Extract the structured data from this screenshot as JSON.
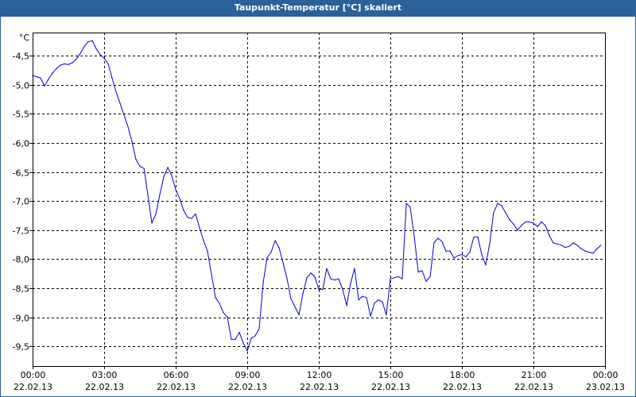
{
  "chart_data": {
    "type": "line",
    "title": "Taupunkt-Temperatur [°C] skaliert",
    "y_unit": "°C",
    "ylim": [
      -9.84,
      -4.1
    ],
    "y_ticks": [
      -4.5,
      -5.0,
      -5.5,
      -6.0,
      -6.5,
      -7.0,
      -7.5,
      -8.0,
      -8.5,
      -9.0,
      -9.5
    ],
    "y_tick_labels": [
      "-4,5",
      "-5,0",
      "-5,5",
      "-6,0",
      "-6,5",
      "-7,0",
      "-7,5",
      "-8,0",
      "-8,5",
      "-9,0",
      "-9,5"
    ],
    "xlim": [
      0,
      24
    ],
    "x_ticks": [
      0,
      3,
      6,
      9,
      12,
      15,
      18,
      21,
      24
    ],
    "x_tick_labels": [
      [
        "00:00",
        "22.02.13"
      ],
      [
        "03:00",
        "22.02.13"
      ],
      [
        "06:00",
        "22.02.13"
      ],
      [
        "09:00",
        "22.02.13"
      ],
      [
        "12:00",
        "22.02.13"
      ],
      [
        "15:00",
        "22.02.13"
      ],
      [
        "18:00",
        "22.02.13"
      ],
      [
        "21:00",
        "22.02.13"
      ],
      [
        "00:00",
        "23.02.13"
      ]
    ],
    "grid": true,
    "series": [
      {
        "color": "#0000cc",
        "x": [
          0,
          0.17,
          0.33,
          0.5,
          0.67,
          0.83,
          1.0,
          1.17,
          1.33,
          1.5,
          1.67,
          1.83,
          2.0,
          2.17,
          2.33,
          2.5,
          2.67,
          2.83,
          3.0,
          3.17,
          3.33,
          3.5,
          3.67,
          3.83,
          4.0,
          4.17,
          4.33,
          4.5,
          4.67,
          4.83,
          5.0,
          5.17,
          5.33,
          5.5,
          5.67,
          5.83,
          6.0,
          6.17,
          6.33,
          6.5,
          6.67,
          6.83,
          7.0,
          7.17,
          7.33,
          7.5,
          7.67,
          7.83,
          8.0,
          8.17,
          8.33,
          8.5,
          8.67,
          8.83,
          9.0,
          9.17,
          9.33,
          9.5,
          9.67,
          9.83,
          10.0,
          10.17,
          10.33,
          10.5,
          10.67,
          10.83,
          11.0,
          11.17,
          11.33,
          11.5,
          11.67,
          11.83,
          12.0,
          12.17,
          12.33,
          12.5,
          12.67,
          12.83,
          13.0,
          13.17,
          13.33,
          13.5,
          13.67,
          13.83,
          14.0,
          14.17,
          14.33,
          14.5,
          14.67,
          14.83,
          15.0,
          15.17,
          15.33,
          15.5,
          15.67,
          15.83,
          16.0,
          16.17,
          16.33,
          16.5,
          16.67,
          16.83,
          17.0,
          17.17,
          17.33,
          17.5,
          17.67,
          17.83,
          18.0,
          18.17,
          18.33,
          18.5,
          18.67,
          18.83,
          19.0,
          19.17,
          19.33,
          19.5,
          19.67,
          19.83,
          20.0,
          20.17,
          20.33,
          20.5,
          20.67,
          20.83,
          21.0,
          21.17,
          21.33,
          21.5,
          21.67,
          21.83,
          22.0,
          22.17,
          22.33,
          22.5,
          22.67,
          22.83,
          23.0,
          23.17,
          23.33,
          23.5,
          23.67,
          23.83
        ],
        "y": [
          -4.84,
          -4.86,
          -4.88,
          -5.02,
          -4.9,
          -4.8,
          -4.72,
          -4.66,
          -4.64,
          -4.65,
          -4.62,
          -4.56,
          -4.46,
          -4.34,
          -4.26,
          -4.24,
          -4.38,
          -4.48,
          -4.54,
          -4.64,
          -4.88,
          -5.12,
          -5.32,
          -5.52,
          -5.72,
          -5.98,
          -6.28,
          -6.4,
          -6.44,
          -6.88,
          -7.38,
          -7.22,
          -6.9,
          -6.58,
          -6.42,
          -6.56,
          -6.8,
          -6.96,
          -7.16,
          -7.28,
          -7.3,
          -7.22,
          -7.46,
          -7.68,
          -7.86,
          -8.26,
          -8.66,
          -8.76,
          -8.92,
          -9.0,
          -9.38,
          -9.38,
          -9.26,
          -9.44,
          -9.58,
          -9.36,
          -9.32,
          -9.2,
          -8.4,
          -7.98,
          -7.88,
          -7.68,
          -7.8,
          -8.06,
          -8.34,
          -8.68,
          -8.82,
          -8.96,
          -8.6,
          -8.32,
          -8.24,
          -8.3,
          -8.52,
          -8.52,
          -8.16,
          -8.34,
          -8.36,
          -8.34,
          -8.52,
          -8.8,
          -8.42,
          -8.16,
          -8.7,
          -8.64,
          -8.66,
          -8.98,
          -8.76,
          -8.7,
          -8.74,
          -8.96,
          -8.34,
          -8.32,
          -8.3,
          -8.34,
          -7.04,
          -7.1,
          -7.6,
          -8.22,
          -8.2,
          -8.38,
          -8.3,
          -7.72,
          -7.64,
          -7.7,
          -7.86,
          -7.86,
          -7.98,
          -7.94,
          -7.92,
          -7.96,
          -7.88,
          -7.62,
          -7.62,
          -7.92,
          -8.1,
          -7.72,
          -7.2,
          -7.04,
          -7.08,
          -7.2,
          -7.32,
          -7.4,
          -7.5,
          -7.42,
          -7.36,
          -7.36,
          -7.38,
          -7.44,
          -7.36,
          -7.42,
          -7.6,
          -7.72,
          -7.74,
          -7.76,
          -7.8,
          -7.78,
          -7.72,
          -7.76,
          -7.82,
          -7.86,
          -7.88,
          -7.9,
          -7.82,
          -7.76
        ]
      }
    ]
  }
}
